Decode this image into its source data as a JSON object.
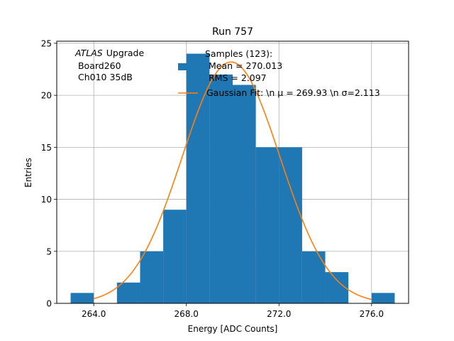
{
  "chart_data": {
    "type": "bar",
    "title": "Run 757",
    "xlabel": "Energy [ADC Counts]",
    "ylabel": "Entries",
    "xlim": [
      262.4,
      277.6
    ],
    "ylim": [
      0,
      25.2
    ],
    "x_ticks": [
      264.0,
      268.0,
      272.0,
      276.0
    ],
    "x_tick_labels": [
      "264.0",
      "268.0",
      "272.0",
      "276.0"
    ],
    "y_ticks": [
      0,
      5,
      10,
      15,
      20,
      25
    ],
    "y_tick_labels": [
      "0",
      "5",
      "10",
      "15",
      "20",
      "25"
    ],
    "grid": true,
    "histogram": {
      "name": "Samples (123):",
      "color": "#1f77b4",
      "bin_width": 1,
      "bin_left_edges": [
        263,
        264,
        265,
        266,
        267,
        268,
        269,
        270,
        271,
        272,
        273,
        274,
        275,
        276
      ],
      "counts": [
        1,
        0,
        2,
        5,
        9,
        24,
        22,
        21,
        15,
        15,
        5,
        3,
        0,
        1
      ]
    },
    "fit": {
      "label": "Gaussian Fit: \\n $\\mu$ = 269.93 \\n $\\sigma$=2.113",
      "color": "#ff7f0e",
      "mu": 269.93,
      "sigma": 2.113,
      "amplitude": 23.2,
      "x_range": [
        264.0,
        276.0
      ]
    },
    "legend": {
      "placement": "top-center",
      "entries": [
        {
          "label": "Samples (123):",
          "sub": [
            "Mean = 270.013",
            "RMS = 2.097"
          ],
          "kind": "patch",
          "color": "#1f77b4"
        },
        {
          "label": "Gaussian Fit: \\n μ = 269.93 \\n σ=2.113",
          "kind": "line",
          "color": "#ff7f0e"
        }
      ]
    },
    "annotation": {
      "lines": [
        "Upgrade",
        " Board260",
        " Ch010 35dB"
      ],
      "italic_prefix": "ATLAS"
    }
  }
}
